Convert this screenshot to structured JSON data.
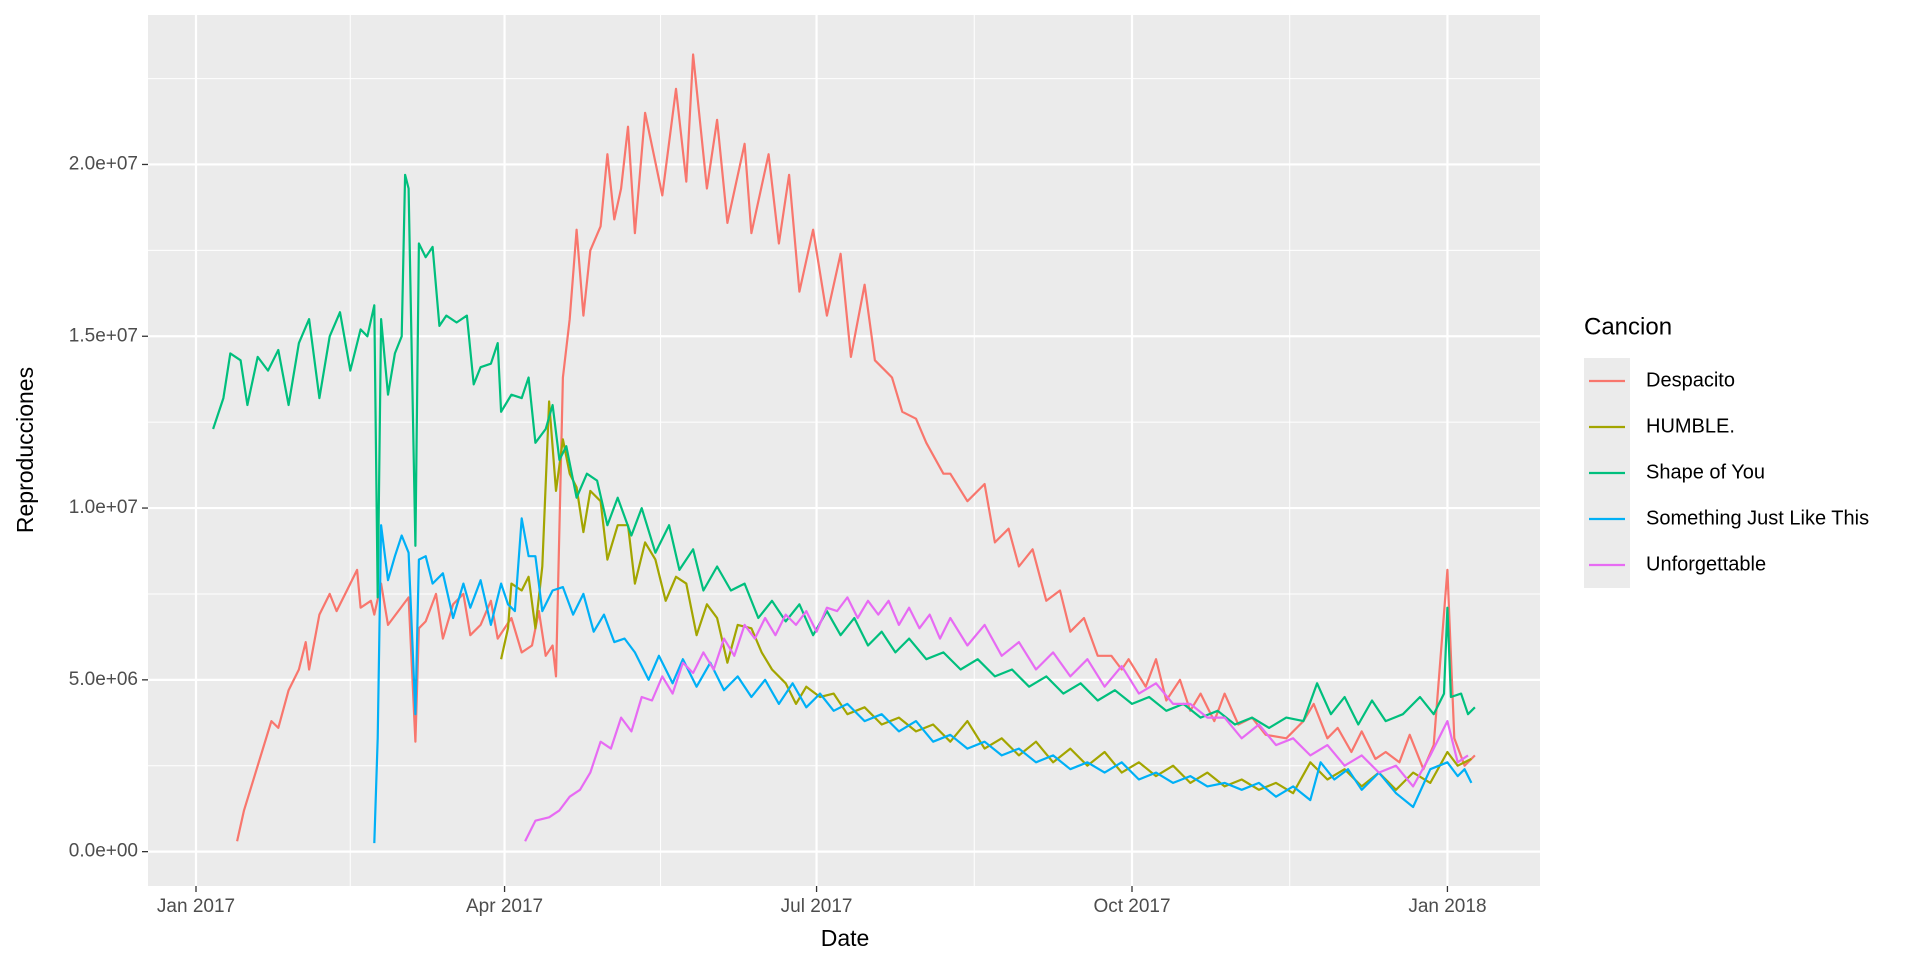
{
  "chart_data": {
    "type": "line",
    "x_label": "Date",
    "y_label": "Reproducciones",
    "legend_title": "Cancion",
    "legend": "right",
    "grid": true,
    "xlim": [
      -14,
      392
    ],
    "ylim": [
      -1000000,
      24350000
    ],
    "xticks": [
      {
        "value": 0,
        "label": "Jan 2017"
      },
      {
        "value": 90,
        "label": "Apr 2017"
      },
      {
        "value": 181,
        "label": "Jul 2017"
      },
      {
        "value": 273,
        "label": "Oct 2017"
      },
      {
        "value": 365,
        "label": "Jan 2018"
      }
    ],
    "yticks": [
      {
        "value": 0,
        "label": "0.0e+00"
      },
      {
        "value": 5000000,
        "label": "5.0e+06"
      },
      {
        "value": 10000000,
        "label": "1.0e+07"
      },
      {
        "value": 15000000,
        "label": "1.5e+07"
      },
      {
        "value": 20000000,
        "label": "2.0e+07"
      }
    ],
    "series": [
      {
        "name": "Despacito",
        "color": "#F8766D",
        "x": [
          12,
          14,
          18,
          22,
          24,
          27,
          30,
          32,
          33,
          36,
          39,
          41,
          44,
          47,
          48,
          51,
          52,
          54,
          56,
          59,
          62,
          64,
          65,
          67,
          70,
          72,
          75,
          78,
          80,
          83,
          86,
          88,
          92,
          95,
          98,
          100,
          102,
          104,
          105,
          107,
          109,
          111,
          113,
          115,
          118,
          120,
          122,
          124,
          126,
          128,
          131,
          136,
          140,
          143,
          145,
          149,
          152,
          155,
          160,
          162,
          167,
          170,
          173,
          176,
          180,
          184,
          188,
          191,
          195,
          198,
          203,
          206,
          210,
          213,
          218,
          220,
          225,
          230,
          233,
          237,
          240,
          244,
          248,
          252,
          255,
          259,
          263,
          267,
          270,
          272,
          277,
          280,
          283,
          287,
          290,
          293,
          297,
          300,
          304,
          308,
          312,
          318,
          323,
          326,
          330,
          333,
          337,
          340,
          344,
          347,
          351,
          354,
          358,
          361,
          365,
          367,
          370,
          373
        ],
        "values": [
          300000,
          1200000,
          2500000,
          3800000,
          3600000,
          4700000,
          5300000,
          6100000,
          5300000,
          6900000,
          7500000,
          7000000,
          7600000,
          8200000,
          7100000,
          7300000,
          6900000,
          7800000,
          6600000,
          7000000,
          7400000,
          3200000,
          6500000,
          6700000,
          7500000,
          6200000,
          7200000,
          7500000,
          6300000,
          6600000,
          7300000,
          6200000,
          6800000,
          5800000,
          6000000,
          7000000,
          5700000,
          6000000,
          5100000,
          13800000,
          15500000,
          18100000,
          15600000,
          17500000,
          18200000,
          20300000,
          18400000,
          19300000,
          21100000,
          18000000,
          21500000,
          19100000,
          22200000,
          19500000,
          23200000,
          19300000,
          21300000,
          18300000,
          20600000,
          18000000,
          20300000,
          17700000,
          19700000,
          16300000,
          18100000,
          15600000,
          17400000,
          14400000,
          16500000,
          14300000,
          13800000,
          12800000,
          12600000,
          11900000,
          11000000,
          11000000,
          10200000,
          10700000,
          9000000,
          9400000,
          8300000,
          8800000,
          7300000,
          7600000,
          6400000,
          6800000,
          5700000,
          5700000,
          5300000,
          5600000,
          4800000,
          5600000,
          4400000,
          5000000,
          4100000,
          4600000,
          3800000,
          4600000,
          3700000,
          3900000,
          3400000,
          3300000,
          3800000,
          4300000,
          3300000,
          3600000,
          2900000,
          3500000,
          2700000,
          2900000,
          2600000,
          3400000,
          2400000,
          3100000,
          8200000,
          3300000,
          2500000,
          2800000
        ]
      },
      {
        "name": "HUMBLE.",
        "color": "#A3A500",
        "x": [
          89,
          91,
          92,
          95,
          97,
          99,
          101,
          103,
          105,
          107,
          109,
          111,
          113,
          115,
          118,
          120,
          123,
          126,
          128,
          131,
          134,
          137,
          140,
          143,
          146,
          149,
          152,
          155,
          158,
          162,
          165,
          168,
          172,
          175,
          178,
          182,
          186,
          190,
          195,
          200,
          205,
          210,
          215,
          220,
          225,
          230,
          235,
          240,
          245,
          250,
          255,
          260,
          265,
          270,
          275,
          280,
          285,
          290,
          295,
          300,
          305,
          310,
          315,
          320,
          325,
          330,
          335,
          340,
          345,
          350,
          355,
          360,
          365,
          368,
          372
        ],
        "values": [
          5600000,
          6500000,
          7800000,
          7600000,
          8000000,
          6500000,
          8300000,
          13100000,
          10500000,
          12000000,
          11000000,
          10600000,
          9300000,
          10500000,
          10200000,
          8500000,
          9500000,
          9500000,
          7800000,
          9000000,
          8500000,
          7300000,
          8000000,
          7800000,
          6300000,
          7200000,
          6800000,
          5500000,
          6600000,
          6500000,
          5800000,
          5300000,
          4900000,
          4300000,
          4800000,
          4500000,
          4600000,
          4000000,
          4200000,
          3700000,
          3900000,
          3500000,
          3700000,
          3200000,
          3800000,
          3000000,
          3300000,
          2800000,
          3200000,
          2600000,
          3000000,
          2500000,
          2900000,
          2300000,
          2600000,
          2200000,
          2500000,
          2000000,
          2300000,
          1900000,
          2100000,
          1800000,
          2000000,
          1700000,
          2600000,
          2100000,
          2400000,
          1900000,
          2300000,
          1800000,
          2300000,
          2000000,
          2900000,
          2500000,
          2700000
        ]
      },
      {
        "name": "Shape of You",
        "color": "#00BF7D",
        "x": [
          5,
          8,
          10,
          13,
          15,
          18,
          21,
          24,
          27,
          30,
          33,
          36,
          39,
          42,
          45,
          48,
          50,
          52,
          53,
          54,
          56,
          58,
          60,
          61,
          62,
          64,
          65,
          67,
          69,
          71,
          73,
          76,
          79,
          81,
          83,
          86,
          88,
          89,
          92,
          95,
          97,
          99,
          102,
          104,
          106,
          108,
          111,
          114,
          117,
          120,
          123,
          127,
          130,
          134,
          138,
          141,
          145,
          148,
          152,
          156,
          160,
          164,
          168,
          172,
          176,
          180,
          184,
          188,
          192,
          196,
          200,
          204,
          208,
          213,
          218,
          223,
          228,
          233,
          238,
          243,
          248,
          253,
          258,
          263,
          268,
          273,
          278,
          283,
          288,
          293,
          298,
          303,
          308,
          313,
          318,
          323,
          327,
          331,
          335,
          339,
          343,
          347,
          352,
          357,
          361,
          364,
          365,
          366,
          369,
          371,
          373
        ],
        "values": [
          12300000,
          13200000,
          14500000,
          14300000,
          13000000,
          14400000,
          14000000,
          14600000,
          13000000,
          14800000,
          15500000,
          13200000,
          15000000,
          15700000,
          14000000,
          15200000,
          15000000,
          15900000,
          7400000,
          15500000,
          13300000,
          14500000,
          15000000,
          19700000,
          19300000,
          8900000,
          17700000,
          17300000,
          17600000,
          15300000,
          15600000,
          15400000,
          15600000,
          13600000,
          14100000,
          14200000,
          14800000,
          12800000,
          13300000,
          13200000,
          13800000,
          11900000,
          12300000,
          13000000,
          11400000,
          11800000,
          10300000,
          11000000,
          10800000,
          9500000,
          10300000,
          9200000,
          10000000,
          8700000,
          9500000,
          8200000,
          8800000,
          7600000,
          8300000,
          7600000,
          7800000,
          6800000,
          7300000,
          6700000,
          7200000,
          6300000,
          7000000,
          6300000,
          6800000,
          6000000,
          6400000,
          5800000,
          6200000,
          5600000,
          5800000,
          5300000,
          5600000,
          5100000,
          5300000,
          4800000,
          5100000,
          4600000,
          4900000,
          4400000,
          4700000,
          4300000,
          4500000,
          4100000,
          4300000,
          3900000,
          4100000,
          3700000,
          3900000,
          3600000,
          3900000,
          3800000,
          4900000,
          4000000,
          4500000,
          3700000,
          4400000,
          3800000,
          4000000,
          4500000,
          4000000,
          4600000,
          7100000,
          4500000,
          4600000,
          4000000,
          4200000
        ]
      },
      {
        "name": "Something Just Like This",
        "color": "#00B0F6",
        "x": [
          52,
          53,
          54,
          56,
          58,
          60,
          62,
          64,
          65,
          67,
          69,
          72,
          75,
          78,
          80,
          83,
          86,
          89,
          91,
          93,
          95,
          97,
          99,
          101,
          104,
          107,
          110,
          113,
          116,
          119,
          122,
          125,
          128,
          132,
          135,
          139,
          142,
          146,
          150,
          154,
          158,
          162,
          166,
          170,
          174,
          178,
          182,
          186,
          190,
          195,
          200,
          205,
          210,
          215,
          220,
          225,
          230,
          235,
          240,
          245,
          250,
          255,
          260,
          265,
          270,
          275,
          280,
          285,
          290,
          295,
          300,
          305,
          310,
          315,
          320,
          325,
          328,
          332,
          336,
          340,
          345,
          350,
          355,
          360,
          365,
          368,
          370,
          372
        ],
        "values": [
          250000,
          3300000,
          9500000,
          7900000,
          8600000,
          9200000,
          8700000,
          4000000,
          8500000,
          8600000,
          7800000,
          8100000,
          6800000,
          7800000,
          7100000,
          7900000,
          6600000,
          7800000,
          7200000,
          7000000,
          9700000,
          8600000,
          8600000,
          7000000,
          7600000,
          7700000,
          6900000,
          7500000,
          6400000,
          6900000,
          6100000,
          6200000,
          5800000,
          5000000,
          5700000,
          4900000,
          5600000,
          4800000,
          5500000,
          4700000,
          5100000,
          4500000,
          5000000,
          4300000,
          4900000,
          4200000,
          4600000,
          4100000,
          4300000,
          3800000,
          4000000,
          3500000,
          3800000,
          3200000,
          3400000,
          3000000,
          3200000,
          2800000,
          3000000,
          2600000,
          2800000,
          2400000,
          2600000,
          2300000,
          2600000,
          2100000,
          2300000,
          2000000,
          2200000,
          1900000,
          2000000,
          1800000,
          2000000,
          1600000,
          1900000,
          1500000,
          2600000,
          2100000,
          2400000,
          1800000,
          2300000,
          1700000,
          1300000,
          2400000,
          2600000,
          2200000,
          2400000,
          2000000
        ]
      },
      {
        "name": "Unforgettable",
        "color": "#E76BF3",
        "x": [
          96,
          99,
          103,
          106,
          109,
          112,
          115,
          118,
          121,
          124,
          127,
          130,
          133,
          136,
          139,
          142,
          145,
          148,
          151,
          154,
          157,
          160,
          163,
          166,
          169,
          172,
          175,
          178,
          181,
          184,
          187,
          190,
          193,
          196,
          199,
          202,
          205,
          208,
          211,
          214,
          217,
          220,
          225,
          230,
          235,
          240,
          245,
          250,
          255,
          260,
          265,
          270,
          275,
          280,
          285,
          290,
          295,
          300,
          305,
          310,
          315,
          320,
          325,
          330,
          335,
          340,
          345,
          350,
          355,
          360,
          365,
          368,
          371
        ],
        "values": [
          300000,
          900000,
          1000000,
          1200000,
          1600000,
          1800000,
          2300000,
          3200000,
          3000000,
          3900000,
          3500000,
          4500000,
          4400000,
          5100000,
          4600000,
          5500000,
          5200000,
          5800000,
          5300000,
          6200000,
          5700000,
          6600000,
          6200000,
          6800000,
          6300000,
          6900000,
          6600000,
          7000000,
          6400000,
          7100000,
          7000000,
          7400000,
          6800000,
          7300000,
          6900000,
          7300000,
          6600000,
          7100000,
          6500000,
          6900000,
          6200000,
          6800000,
          6000000,
          6600000,
          5700000,
          6100000,
          5300000,
          5800000,
          5100000,
          5600000,
          4800000,
          5400000,
          4600000,
          4900000,
          4300000,
          4300000,
          3900000,
          3900000,
          3300000,
          3700000,
          3100000,
          3300000,
          2800000,
          3100000,
          2500000,
          2800000,
          2300000,
          2500000,
          1900000,
          2800000,
          3800000,
          2600000,
          2800000
        ]
      }
    ]
  }
}
